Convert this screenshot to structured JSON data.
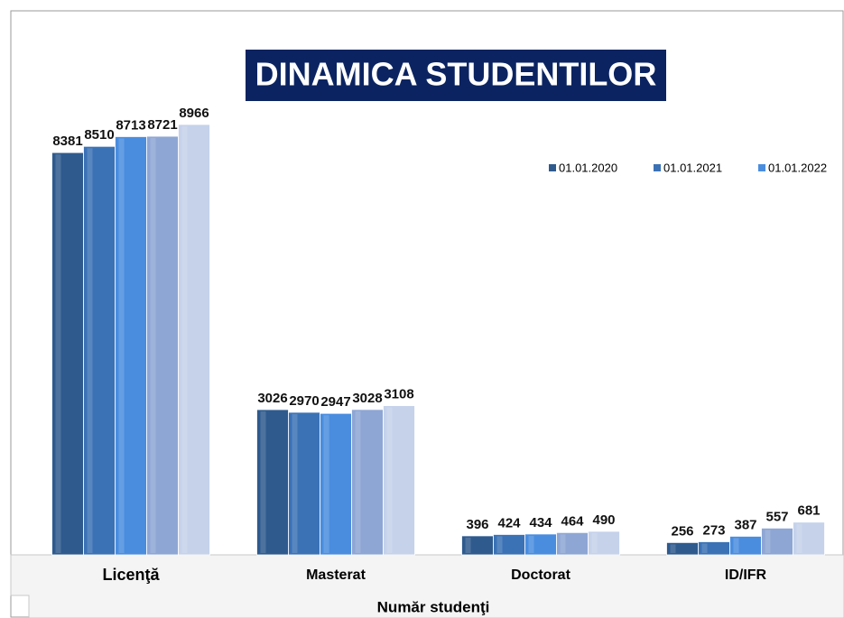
{
  "chart_data": {
    "type": "bar",
    "title": "DINAMICA STUDENTILOR",
    "x_label": "Număr studenţi",
    "categories": [
      "Licenţă",
      "Masterat",
      "Doctorat",
      "ID/IFR"
    ],
    "series": [
      {
        "name": "01.01.2020",
        "color": "#2e5a8e",
        "values": [
          8381,
          3026,
          396,
          256
        ]
      },
      {
        "name": "01.01.2021",
        "color": "#3b72b6",
        "values": [
          8510,
          2970,
          424,
          273
        ]
      },
      {
        "name": "01.01.2022",
        "color": "#4a8ddf",
        "values": [
          8713,
          2947,
          434,
          387
        ]
      },
      {
        "color": "#8ea6d4",
        "values": [
          8721,
          3028,
          464,
          557
        ]
      },
      {
        "color": "#c5d2ea",
        "values": [
          8966,
          3108,
          490,
          681
        ]
      }
    ],
    "legend": "top-right"
  }
}
